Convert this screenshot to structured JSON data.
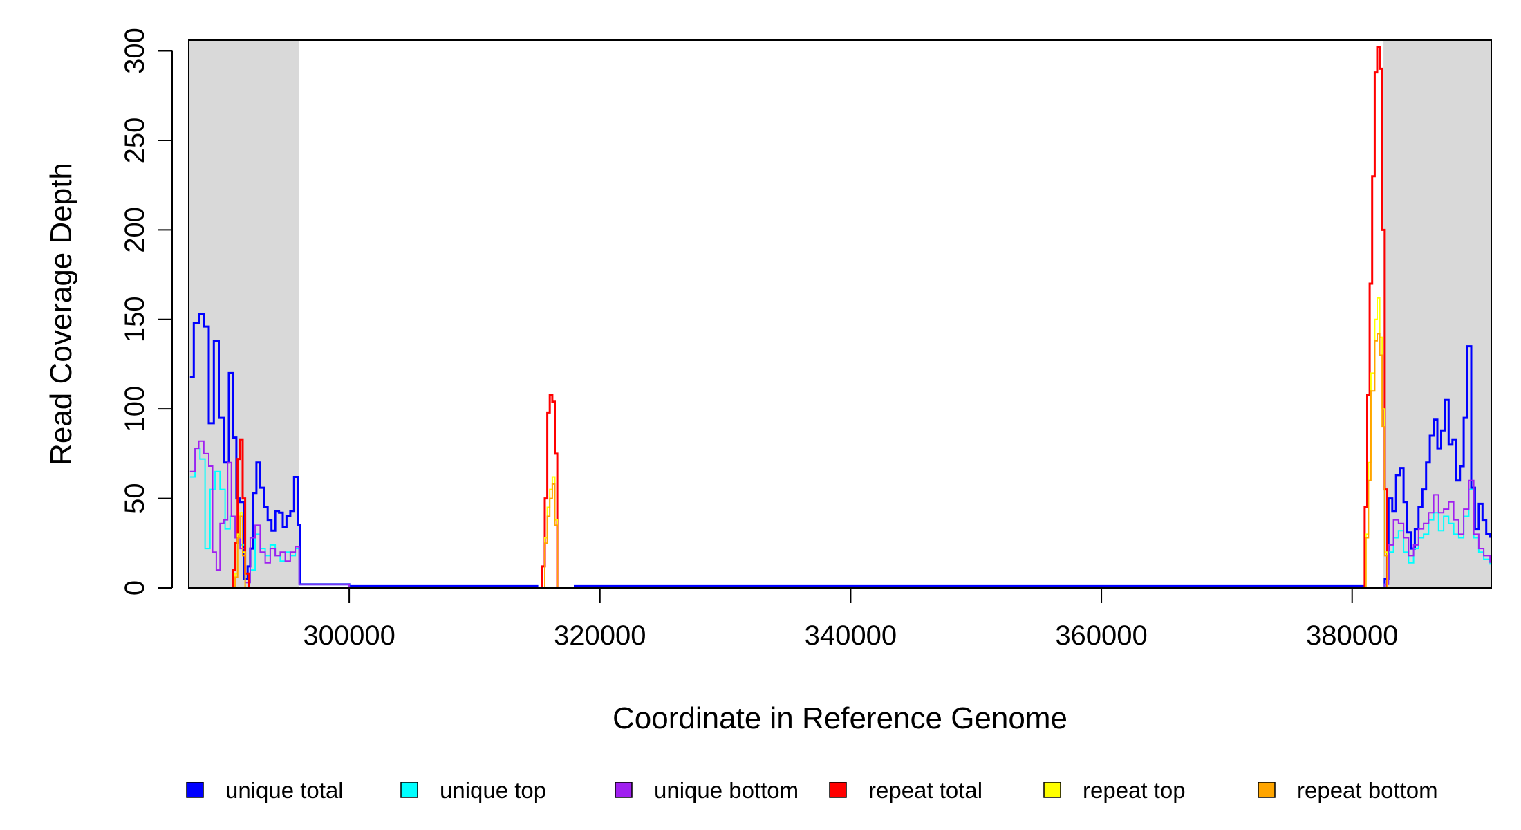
{
  "chart_data": {
    "type": "line",
    "title": "",
    "xlabel": "Coordinate in Reference Genome",
    "ylabel": "Read Coverage Depth",
    "xlim": [
      287200,
      391100
    ],
    "ylim": [
      0,
      306
    ],
    "x_ticks": [
      300000,
      320000,
      340000,
      360000,
      380000
    ],
    "y_ticks": [
      0,
      50,
      100,
      150,
      200,
      250,
      300
    ],
    "shaded_regions": [
      {
        "x0": 287200,
        "x1": 296000,
        "color": "#d9d9d9"
      },
      {
        "x0": 382500,
        "x1": 391100,
        "color": "#d9d9d9"
      }
    ],
    "grid": false,
    "legend_position": "bottom",
    "series": [
      {
        "name": "unique total",
        "color": "#0000ff",
        "points": [
          [
            287300,
            118
          ],
          [
            287600,
            148
          ],
          [
            288000,
            153
          ],
          [
            288400,
            146
          ],
          [
            288800,
            92
          ],
          [
            289200,
            138
          ],
          [
            289600,
            95
          ],
          [
            290000,
            70
          ],
          [
            290400,
            120
          ],
          [
            290700,
            84
          ],
          [
            291000,
            50
          ],
          [
            291300,
            48
          ],
          [
            291600,
            5
          ],
          [
            291900,
            12
          ],
          [
            292100,
            22
          ],
          [
            292300,
            53
          ],
          [
            292600,
            70
          ],
          [
            292900,
            56
          ],
          [
            293200,
            45
          ],
          [
            293500,
            38
          ],
          [
            293800,
            32
          ],
          [
            294100,
            43
          ],
          [
            294400,
            42
          ],
          [
            294700,
            34
          ],
          [
            295000,
            40
          ],
          [
            295300,
            43
          ],
          [
            295600,
            62
          ],
          [
            295900,
            35
          ],
          [
            296100,
            2
          ],
          [
            300000,
            1
          ],
          [
            305000,
            1
          ],
          [
            315000,
            0
          ],
          [
            318000,
            1
          ],
          [
            342000,
            1
          ],
          [
            361000,
            1
          ],
          [
            375500,
            1
          ],
          [
            381000,
            0
          ],
          [
            382600,
            5
          ],
          [
            382900,
            50
          ],
          [
            383200,
            43
          ],
          [
            383500,
            63
          ],
          [
            383800,
            67
          ],
          [
            384100,
            48
          ],
          [
            384400,
            31
          ],
          [
            384700,
            22
          ],
          [
            385000,
            33
          ],
          [
            385300,
            45
          ],
          [
            385600,
            55
          ],
          [
            385900,
            70
          ],
          [
            386200,
            85
          ],
          [
            386500,
            94
          ],
          [
            386800,
            78
          ],
          [
            387100,
            88
          ],
          [
            387400,
            105
          ],
          [
            387700,
            80
          ],
          [
            388000,
            83
          ],
          [
            388300,
            60
          ],
          [
            388600,
            68
          ],
          [
            388900,
            95
          ],
          [
            389200,
            135
          ],
          [
            389500,
            56
          ],
          [
            389800,
            33
          ],
          [
            390100,
            47
          ],
          [
            390400,
            38
          ],
          [
            390700,
            30
          ],
          [
            391000,
            28
          ]
        ]
      },
      {
        "name": "unique top",
        "color": "#00ffff",
        "points": [
          [
            287300,
            62
          ],
          [
            287700,
            78
          ],
          [
            288100,
            72
          ],
          [
            288500,
            22
          ],
          [
            288900,
            55
          ],
          [
            289300,
            65
          ],
          [
            289700,
            55
          ],
          [
            290100,
            33
          ],
          [
            290500,
            40
          ],
          [
            290900,
            28
          ],
          [
            291300,
            24
          ],
          [
            291700,
            3
          ],
          [
            292100,
            10
          ],
          [
            292500,
            30
          ],
          [
            292900,
            22
          ],
          [
            293300,
            18
          ],
          [
            293700,
            24
          ],
          [
            294100,
            18
          ],
          [
            294500,
            15
          ],
          [
            294900,
            20
          ],
          [
            295300,
            18
          ],
          [
            295700,
            22
          ],
          [
            296000,
            2
          ],
          [
            300000,
            0
          ],
          [
            382600,
            2
          ],
          [
            382900,
            20
          ],
          [
            383300,
            28
          ],
          [
            383700,
            32
          ],
          [
            384100,
            20
          ],
          [
            384500,
            14
          ],
          [
            384900,
            22
          ],
          [
            385300,
            28
          ],
          [
            385700,
            30
          ],
          [
            386100,
            38
          ],
          [
            386500,
            42
          ],
          [
            386900,
            32
          ],
          [
            387300,
            40
          ],
          [
            387700,
            36
          ],
          [
            388100,
            30
          ],
          [
            388500,
            28
          ],
          [
            388900,
            40
          ],
          [
            389300,
            55
          ],
          [
            389700,
            28
          ],
          [
            390100,
            20
          ],
          [
            390500,
            16
          ],
          [
            391000,
            13
          ]
        ]
      },
      {
        "name": "unique bottom",
        "color": "#a020f0",
        "points": [
          [
            287300,
            65
          ],
          [
            287700,
            78
          ],
          [
            288000,
            82
          ],
          [
            288400,
            75
          ],
          [
            288800,
            68
          ],
          [
            289100,
            20
          ],
          [
            289400,
            10
          ],
          [
            289700,
            36
          ],
          [
            290000,
            38
          ],
          [
            290300,
            70
          ],
          [
            290600,
            40
          ],
          [
            290900,
            28
          ],
          [
            291300,
            22
          ],
          [
            291700,
            3
          ],
          [
            292100,
            28
          ],
          [
            292500,
            35
          ],
          [
            292900,
            20
          ],
          [
            293300,
            14
          ],
          [
            293700,
            22
          ],
          [
            294100,
            18
          ],
          [
            294500,
            20
          ],
          [
            294900,
            15
          ],
          [
            295300,
            20
          ],
          [
            295700,
            23
          ],
          [
            296000,
            2
          ],
          [
            300000,
            0
          ],
          [
            382600,
            2
          ],
          [
            382900,
            24
          ],
          [
            383300,
            38
          ],
          [
            383700,
            36
          ],
          [
            384100,
            28
          ],
          [
            384500,
            18
          ],
          [
            384900,
            24
          ],
          [
            385300,
            33
          ],
          [
            385700,
            36
          ],
          [
            386100,
            42
          ],
          [
            386500,
            52
          ],
          [
            386900,
            42
          ],
          [
            387300,
            44
          ],
          [
            387700,
            48
          ],
          [
            388100,
            38
          ],
          [
            388500,
            30
          ],
          [
            388900,
            44
          ],
          [
            389300,
            60
          ],
          [
            389700,
            30
          ],
          [
            390100,
            22
          ],
          [
            390500,
            18
          ],
          [
            391000,
            14
          ]
        ]
      },
      {
        "name": "repeat total",
        "color": "#ff0000",
        "points": [
          [
            287300,
            0
          ],
          [
            290500,
            0
          ],
          [
            290700,
            10
          ],
          [
            290900,
            25
          ],
          [
            291100,
            72
          ],
          [
            291300,
            83
          ],
          [
            291500,
            50
          ],
          [
            291700,
            8
          ],
          [
            292000,
            0
          ],
          [
            315200,
            0
          ],
          [
            315400,
            12
          ],
          [
            315600,
            50
          ],
          [
            315800,
            98
          ],
          [
            316000,
            108
          ],
          [
            316200,
            104
          ],
          [
            316400,
            75
          ],
          [
            316600,
            0
          ],
          [
            380800,
            0
          ],
          [
            381000,
            45
          ],
          [
            381200,
            108
          ],
          [
            381400,
            170
          ],
          [
            381600,
            230
          ],
          [
            381800,
            288
          ],
          [
            382000,
            302
          ],
          [
            382200,
            290
          ],
          [
            382400,
            200
          ],
          [
            382600,
            55
          ],
          [
            382800,
            0
          ],
          [
            391000,
            0
          ]
        ]
      },
      {
        "name": "repeat top",
        "color": "#ffff00",
        "points": [
          [
            287300,
            0
          ],
          [
            290700,
            0
          ],
          [
            290900,
            8
          ],
          [
            291100,
            30
          ],
          [
            291300,
            42
          ],
          [
            291500,
            20
          ],
          [
            291700,
            0
          ],
          [
            315400,
            0
          ],
          [
            315600,
            28
          ],
          [
            315800,
            45
          ],
          [
            316000,
            55
          ],
          [
            316200,
            62
          ],
          [
            316400,
            38
          ],
          [
            316600,
            0
          ],
          [
            380900,
            0
          ],
          [
            381100,
            30
          ],
          [
            381300,
            70
          ],
          [
            381500,
            120
          ],
          [
            381800,
            150
          ],
          [
            382000,
            162
          ],
          [
            382200,
            140
          ],
          [
            382400,
            100
          ],
          [
            382600,
            20
          ],
          [
            382800,
            0
          ],
          [
            391000,
            0
          ]
        ]
      },
      {
        "name": "repeat bottom",
        "color": "#ffa500",
        "points": [
          [
            287300,
            0
          ],
          [
            290700,
            0
          ],
          [
            290900,
            6
          ],
          [
            291100,
            28
          ],
          [
            291300,
            40
          ],
          [
            291500,
            18
          ],
          [
            291700,
            0
          ],
          [
            315400,
            0
          ],
          [
            315600,
            25
          ],
          [
            315800,
            40
          ],
          [
            316000,
            50
          ],
          [
            316200,
            58
          ],
          [
            316400,
            35
          ],
          [
            316600,
            0
          ],
          [
            380900,
            0
          ],
          [
            381100,
            28
          ],
          [
            381300,
            60
          ],
          [
            381500,
            110
          ],
          [
            381800,
            138
          ],
          [
            382000,
            142
          ],
          [
            382200,
            130
          ],
          [
            382400,
            90
          ],
          [
            382600,
            18
          ],
          [
            382800,
            0
          ],
          [
            391000,
            0
          ]
        ]
      }
    ]
  }
}
